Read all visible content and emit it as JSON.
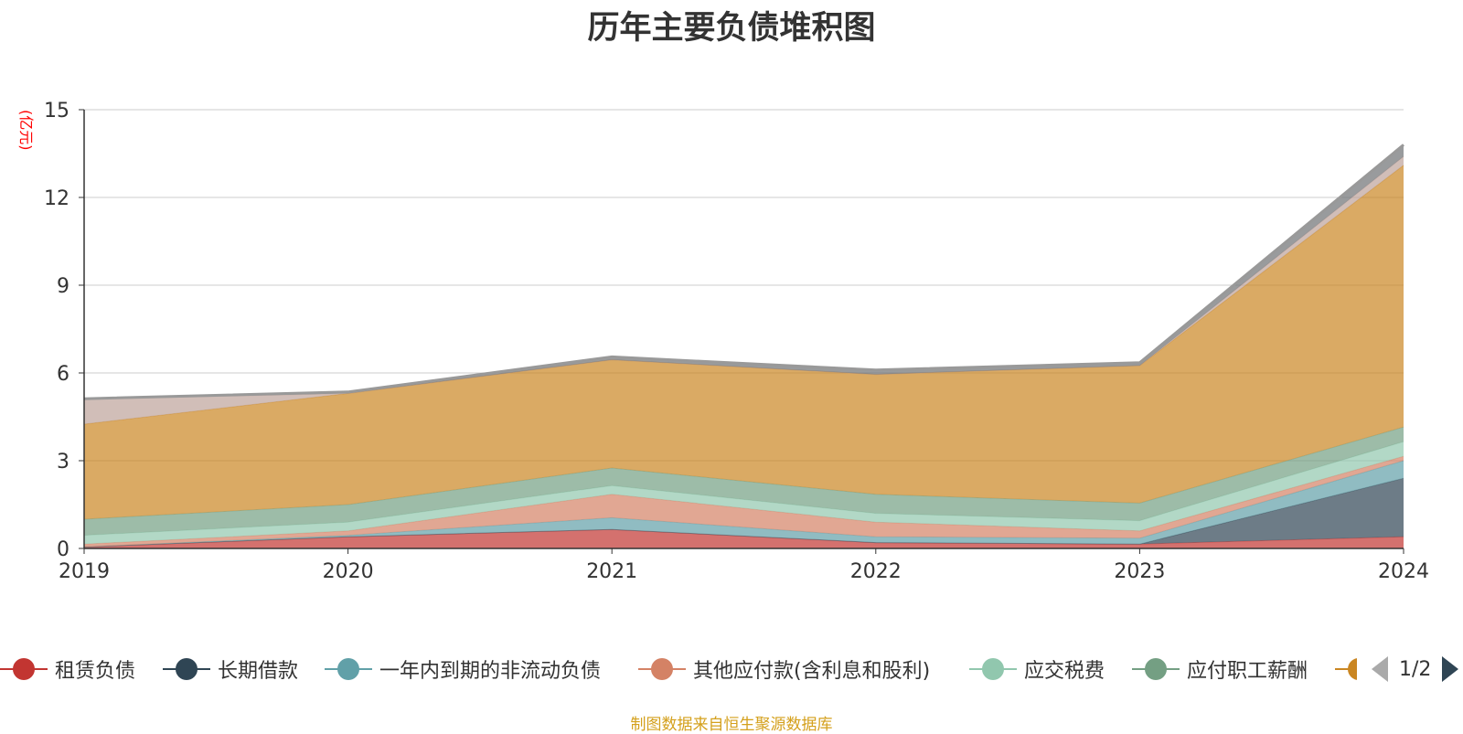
{
  "title": "历年主要负债堆积图",
  "unit_label": "(亿元)",
  "source_note": "制图数据来自恒生聚源数据库",
  "legend_page": "1/2",
  "chart_data": {
    "type": "area",
    "stacked": true,
    "x": [
      "2019",
      "2020",
      "2021",
      "2022",
      "2023",
      "2024"
    ],
    "ylim": [
      0,
      15
    ],
    "yticks": [
      0,
      3,
      6,
      9,
      12,
      15
    ],
    "grid": true,
    "legend_position": "bottom",
    "series": [
      {
        "name": "租赁负债",
        "color": "#c23531",
        "values": [
          0.05,
          0.4,
          0.65,
          0.2,
          0.15,
          0.4
        ],
        "legend": true
      },
      {
        "name": "长期借款",
        "color": "#2f4554",
        "values": [
          0.0,
          0.0,
          0.0,
          0.0,
          0.0,
          2.0
        ],
        "legend": true
      },
      {
        "name": "一年内到期的非流动负债",
        "color": "#61a0a8",
        "values": [
          0.0,
          0.05,
          0.4,
          0.2,
          0.2,
          0.6
        ],
        "legend": true
      },
      {
        "name": "其他应付款(含利息和股利)",
        "color": "#d48265",
        "values": [
          0.1,
          0.15,
          0.8,
          0.5,
          0.25,
          0.15
        ],
        "legend": true
      },
      {
        "name": "应交税费",
        "color": "#91c7ae",
        "values": [
          0.3,
          0.3,
          0.3,
          0.3,
          0.35,
          0.5
        ],
        "legend": true
      },
      {
        "name": "应付职工薪酬",
        "color": "#749f83",
        "values": [
          0.55,
          0.6,
          0.6,
          0.65,
          0.6,
          0.5
        ],
        "legend": true
      },
      {
        "name": "",
        "color": "#ca8622",
        "values": [
          3.25,
          3.8,
          3.7,
          4.1,
          4.7,
          8.95
        ],
        "legend": true
      },
      {
        "name": "",
        "color": "#bda29a",
        "values": [
          0.85,
          0.0,
          0.0,
          0.0,
          0.0,
          0.3
        ],
        "legend": false
      },
      {
        "name": "",
        "color": "#6e7074",
        "values": [
          0.02,
          0.05,
          0.1,
          0.15,
          0.1,
          0.4
        ],
        "legend": false
      }
    ]
  }
}
